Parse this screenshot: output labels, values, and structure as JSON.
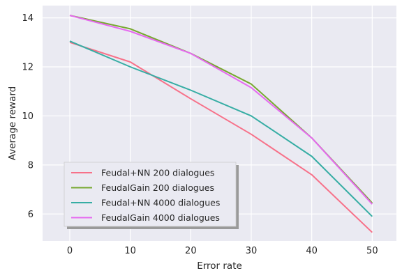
{
  "chart_data": {
    "type": "line",
    "xlabel": "Error rate",
    "ylabel": "Average reward",
    "x": [
      0,
      10,
      20,
      30,
      40,
      50
    ],
    "xlim": [
      -4.5,
      54
    ],
    "ylim": [
      4.9,
      14.5
    ],
    "xticks": [
      0,
      10,
      20,
      30,
      40,
      50
    ],
    "yticks": [
      6,
      8,
      10,
      12,
      14
    ],
    "grid": true,
    "legend_position": "lower-left",
    "series": [
      {
        "name": "Feudal+NN 200 dialogues",
        "color": "#f77189",
        "values": [
          13.0,
          12.2,
          10.7,
          9.25,
          7.6,
          5.25
        ]
      },
      {
        "name": "FeudalGain 200 dialogues",
        "color": "#77a830",
        "values": [
          14.1,
          13.55,
          12.55,
          11.3,
          9.1,
          6.45
        ]
      },
      {
        "name": "Feudal+NN 4000 dialogues",
        "color": "#36ada4",
        "values": [
          13.05,
          12.0,
          11.05,
          10.0,
          8.35,
          5.9
        ]
      },
      {
        "name": "FeudalGain 4000 dialogues",
        "color": "#e66af0",
        "values": [
          14.1,
          13.45,
          12.55,
          11.15,
          9.1,
          6.4
        ]
      }
    ]
  }
}
